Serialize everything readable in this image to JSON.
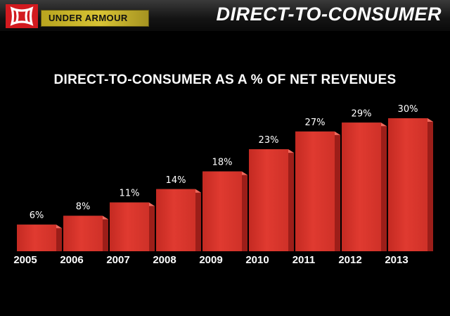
{
  "header": {
    "logo_icon": "under-armour-logo-icon",
    "brand": "UNDER ARMOUR",
    "title": "DIRECT-TO-CONSUMER"
  },
  "colors": {
    "background": "#000000",
    "bar_front": "#e03a30",
    "bar_side": "#9c1e19",
    "bar_top": "#f06a5e",
    "logo_red": "#d21a1f",
    "brand_gold": "#d2bd2e"
  },
  "chart_data": {
    "type": "bar",
    "title": "DIRECT-TO-CONSUMER AS A % OF NET REVENUES",
    "categories": [
      "2005",
      "2006",
      "2007",
      "2008",
      "2009",
      "2010",
      "2011",
      "2012",
      "2013"
    ],
    "values": [
      6,
      8,
      11,
      14,
      18,
      23,
      27,
      29,
      30
    ],
    "data_labels": [
      "6%",
      "8%",
      "11%",
      "14%",
      "18%",
      "23%",
      "27%",
      "29%",
      "30%"
    ],
    "unit": "%",
    "ylim": [
      0,
      30
    ],
    "grid": false,
    "legend": "none"
  }
}
